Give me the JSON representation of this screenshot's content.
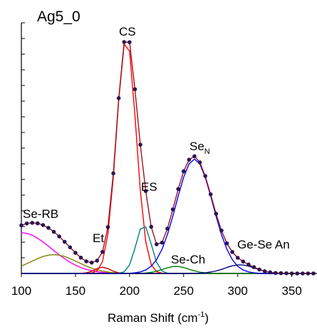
{
  "chart_data": {
    "type": "line",
    "title": "Ag5_0",
    "xlabel": {
      "text": "Raman Shift (cm",
      "sup": "-1",
      "tail": ")"
    },
    "annotations": [
      "Se-RB",
      "Et",
      "CS",
      "ES",
      "Se-Ch",
      "Ge-Se An",
      {
        "text": "Se",
        "sub": "N"
      }
    ],
    "xlim": [
      100,
      370
    ],
    "xticks": [
      100,
      150,
      200,
      250,
      300,
      350
    ],
    "ylim": [
      0,
      16
    ],
    "yticks": [
      0,
      1,
      2,
      3,
      4,
      5,
      6,
      7,
      8,
      9,
      10,
      11,
      12,
      13,
      14,
      15,
      16
    ],
    "x": [
      100,
      105,
      110,
      115,
      120,
      125,
      130,
      135,
      140,
      145,
      150,
      155,
      160,
      165,
      170,
      175,
      180,
      185,
      190,
      195,
      200,
      205,
      210,
      215,
      220,
      225,
      230,
      235,
      240,
      245,
      250,
      255,
      260,
      265,
      270,
      275,
      280,
      285,
      290,
      295,
      300,
      305,
      310,
      315,
      320,
      325,
      330,
      335,
      340,
      345,
      350,
      355,
      360,
      365,
      370
    ],
    "series": [
      {
        "color": "#ff00ff",
        "values": [
          2.6,
          2.56,
          2.44,
          2.25,
          2.01,
          1.74,
          1.46,
          1.19,
          0.94,
          0.72,
          0.53,
          0.38,
          0.26,
          0.18,
          0.11,
          0.07,
          0.04,
          0.03,
          0.02,
          0.01,
          0,
          0,
          0,
          0,
          0,
          0,
          0,
          0,
          0,
          0,
          0,
          0,
          0,
          0,
          0,
          0,
          0,
          0,
          0,
          0,
          0,
          0,
          0,
          0,
          0,
          0,
          0,
          0,
          0,
          0,
          0,
          0,
          0,
          0,
          0
        ]
      },
      {
        "color": "#808000",
        "values": [
          0.47,
          0.63,
          0.79,
          0.95,
          1.08,
          1.17,
          1.2,
          1.17,
          1.08,
          0.95,
          0.79,
          0.63,
          0.47,
          0.34,
          0.23,
          0.15,
          0.09,
          0.05,
          0.03,
          0.01,
          0.01,
          0,
          0,
          0,
          0,
          0,
          0,
          0,
          0,
          0,
          0,
          0,
          0,
          0,
          0,
          0,
          0,
          0,
          0,
          0,
          0,
          0,
          0,
          0,
          0,
          0,
          0,
          0,
          0,
          0,
          0,
          0,
          0,
          0,
          0
        ]
      },
      {
        "color": "#c00000",
        "values": [
          0,
          0,
          0,
          0,
          0,
          0,
          0,
          0,
          0,
          0,
          0,
          0,
          0.04,
          0.14,
          0.31,
          0.4,
          0.31,
          0.14,
          0.04,
          0,
          0,
          0,
          0,
          0,
          0,
          0,
          0,
          0,
          0,
          0,
          0,
          0,
          0,
          0,
          0,
          0,
          0,
          0,
          0,
          0,
          0,
          0,
          0,
          0,
          0,
          0,
          0,
          0,
          0,
          0,
          0,
          0,
          0,
          0,
          0
        ]
      },
      {
        "color": "#ff0000",
        "values": [
          0,
          0,
          0,
          0,
          0,
          0,
          0,
          0,
          0,
          0,
          0,
          0,
          0,
          0.03,
          0.17,
          0.76,
          2.52,
          6.17,
          11.09,
          14.64,
          14.19,
          10.11,
          5.28,
          2.03,
          0.57,
          0.12,
          0.02,
          0,
          0,
          0,
          0,
          0,
          0,
          0,
          0,
          0,
          0,
          0,
          0,
          0,
          0,
          0,
          0,
          0,
          0,
          0,
          0,
          0,
          0,
          0,
          0,
          0,
          0,
          0,
          0
        ]
      },
      {
        "color": "#008080",
        "values": [
          0,
          0,
          0,
          0,
          0,
          0,
          0,
          0,
          0,
          0,
          0,
          0,
          0,
          0,
          0,
          0,
          0,
          0,
          0.01,
          0.11,
          0.55,
          1.61,
          2.83,
          2.98,
          1.88,
          0.71,
          0.16,
          0.02,
          0,
          0,
          0,
          0,
          0,
          0,
          0,
          0,
          0,
          0,
          0,
          0,
          0,
          0,
          0,
          0,
          0,
          0,
          0,
          0,
          0,
          0,
          0,
          0,
          0,
          0,
          0
        ]
      },
      {
        "color": "#008000",
        "values": [
          0,
          0,
          0,
          0,
          0,
          0,
          0,
          0,
          0,
          0,
          0,
          0,
          0,
          0,
          0,
          0,
          0,
          0,
          0,
          0,
          0,
          0,
          0.01,
          0.03,
          0.07,
          0.15,
          0.25,
          0.36,
          0.44,
          0.44,
          0.38,
          0.27,
          0.17,
          0.08,
          0.04,
          0.01,
          0,
          0,
          0,
          0,
          0,
          0,
          0,
          0,
          0,
          0,
          0,
          0,
          0,
          0,
          0,
          0,
          0,
          0,
          0
        ]
      },
      {
        "color": "#0000ff",
        "values": [
          0,
          0,
          0,
          0,
          0,
          0,
          0,
          0,
          0,
          0,
          0,
          0,
          0,
          0,
          0,
          0,
          0,
          0,
          0,
          0,
          0.01,
          0.04,
          0.1,
          0.22,
          0.46,
          0.88,
          1.54,
          2.48,
          3.65,
          4.95,
          6.14,
          6.99,
          7.3,
          6.99,
          6.14,
          4.95,
          3.65,
          2.48,
          1.54,
          0.88,
          0.46,
          0.22,
          0.1,
          0.04,
          0.01,
          0,
          0,
          0,
          0,
          0,
          0,
          0,
          0,
          0,
          0
        ]
      },
      {
        "color": "#000080",
        "values": [
          0,
          0,
          0,
          0,
          0,
          0,
          0,
          0,
          0,
          0,
          0,
          0,
          0,
          0,
          0,
          0,
          0,
          0,
          0,
          0,
          0,
          0,
          0,
          0,
          0,
          0,
          0,
          0,
          0,
          0,
          0,
          0,
          0.01,
          0.02,
          0.04,
          0.09,
          0.16,
          0.26,
          0.38,
          0.49,
          0.54,
          0.54,
          0.47,
          0.36,
          0.24,
          0.14,
          0.07,
          0.03,
          0.02,
          0.01,
          0,
          0,
          0,
          0,
          0
        ]
      },
      {
        "color": "#a01020",
        "values": [
          3.07,
          3.19,
          3.23,
          3.2,
          3.09,
          2.91,
          2.66,
          2.36,
          2.02,
          1.67,
          1.32,
          1.01,
          0.77,
          0.69,
          0.82,
          1.38,
          2.96,
          6.39,
          11.19,
          14.77,
          14.76,
          11.76,
          8.22,
          5.26,
          2.98,
          1.86,
          1.97,
          2.86,
          4.09,
          5.39,
          6.52,
          7.26,
          7.48,
          7.09,
          6.22,
          5.05,
          3.81,
          2.74,
          1.92,
          1.37,
          1.0,
          0.76,
          0.57,
          0.4,
          0.25,
          0.14,
          0.07,
          0.03,
          0.02,
          0.01,
          0,
          0,
          0,
          0,
          0
        ]
      },
      {
        "color": "#2a1650",
        "marker": "dot",
        "values": [
          3.07,
          3.19,
          3.23,
          3.2,
          3.09,
          2.91,
          2.66,
          2.36,
          2.02,
          1.67,
          1.32,
          1.01,
          0.77,
          0.69,
          0.82,
          1.38,
          2.96,
          6.39,
          11.19,
          14.77,
          14.76,
          11.76,
          8.22,
          5.26,
          2.98,
          1.86,
          1.97,
          2.86,
          4.09,
          5.39,
          6.52,
          7.26,
          7.48,
          7.09,
          6.22,
          5.05,
          3.81,
          2.74,
          1.92,
          1.37,
          1.0,
          0.76,
          0.57,
          0.4,
          0.25,
          0.14,
          0.07,
          0.03,
          0.02,
          0.01,
          0,
          0,
          0,
          0,
          0
        ]
      }
    ]
  }
}
